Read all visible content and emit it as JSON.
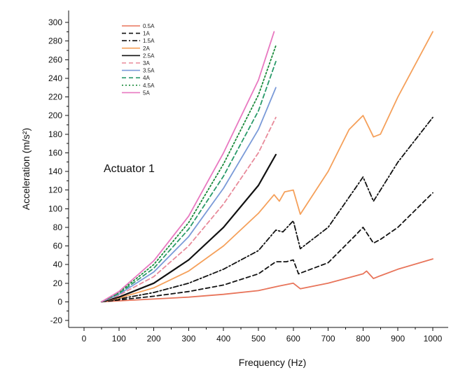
{
  "chart_data": {
    "type": "line",
    "title": "",
    "annotation": "Actuator 1",
    "xlabel": "Frequency (Hz)",
    "ylabel": "Acceleration (m/s²)",
    "xlim": [
      0,
      1000
    ],
    "ylim": [
      -20,
      300
    ],
    "xticks": [
      0,
      100,
      200,
      300,
      400,
      500,
      600,
      700,
      800,
      900,
      1000
    ],
    "yticks": [
      -20,
      0,
      20,
      40,
      60,
      80,
      100,
      120,
      140,
      160,
      180,
      200,
      220,
      240,
      260,
      280,
      300
    ],
    "grid": false,
    "legend_position": "top-left",
    "series": [
      {
        "name": "0.5A",
        "color": "#e8745a",
        "dash": "solid",
        "x": [
          50,
          100,
          200,
          300,
          400,
          500,
          560,
          600,
          620,
          700,
          800,
          810,
          830,
          850,
          900,
          1000
        ],
        "y": [
          0,
          1,
          3,
          5,
          8,
          12,
          17,
          20,
          14,
          20,
          30,
          33,
          25,
          28,
          35,
          46
        ]
      },
      {
        "name": "1A",
        "color": "#111111",
        "dash": "dashed",
        "x": [
          50,
          100,
          200,
          300,
          400,
          500,
          550,
          580,
          600,
          615,
          700,
          780,
          800,
          830,
          850,
          900,
          1000
        ],
        "y": [
          0,
          2,
          6,
          11,
          18,
          30,
          43,
          43,
          45,
          30,
          42,
          72,
          80,
          63,
          67,
          80,
          117
        ]
      },
      {
        "name": "1.5A",
        "color": "#111111",
        "dash": "dashdot",
        "x": [
          50,
          100,
          200,
          300,
          400,
          500,
          550,
          570,
          600,
          620,
          700,
          780,
          800,
          830,
          850,
          900,
          1000
        ],
        "y": [
          0,
          3,
          10,
          20,
          35,
          55,
          77,
          75,
          87,
          57,
          80,
          123,
          134,
          108,
          120,
          150,
          198
        ]
      },
      {
        "name": "2A",
        "color": "#f5a05a",
        "dash": "solid",
        "x": [
          50,
          100,
          200,
          300,
          400,
          500,
          545,
          560,
          575,
          600,
          620,
          700,
          760,
          800,
          830,
          850,
          900,
          1000
        ],
        "y": [
          0,
          4,
          15,
          33,
          60,
          95,
          115,
          108,
          118,
          120,
          94,
          140,
          185,
          200,
          177,
          180,
          220,
          290
        ]
      },
      {
        "name": "2.5A",
        "color": "#111111",
        "dash": "solid",
        "x": [
          50,
          100,
          200,
          300,
          400,
          500,
          550
        ],
        "y": [
          0,
          5,
          20,
          45,
          80,
          125,
          158
        ]
      },
      {
        "name": "3A",
        "color": "#e88a9a",
        "dash": "dashed",
        "x": [
          50,
          100,
          200,
          300,
          400,
          500,
          550
        ],
        "y": [
          0,
          7,
          27,
          60,
          105,
          160,
          198
        ]
      },
      {
        "name": "3.5A",
        "color": "#7a9ad8",
        "dash": "solid",
        "x": [
          50,
          100,
          200,
          300,
          400,
          500,
          550
        ],
        "y": [
          0,
          8,
          32,
          70,
          122,
          185,
          230
        ]
      },
      {
        "name": "4A",
        "color": "#2a9a6a",
        "dash": "dashed",
        "x": [
          50,
          100,
          200,
          300,
          400,
          500,
          550
        ],
        "y": [
          0,
          9,
          36,
          78,
          135,
          205,
          258
        ]
      },
      {
        "name": "4.5A",
        "color": "#1a8a3a",
        "dash": "dotted",
        "x": [
          50,
          100,
          200,
          300,
          400,
          500,
          550
        ],
        "y": [
          0,
          10,
          40,
          85,
          148,
          222,
          275
        ]
      },
      {
        "name": "5A",
        "color": "#e878c0",
        "dash": "solid",
        "x": [
          50,
          100,
          200,
          300,
          400,
          500,
          545
        ],
        "y": [
          0,
          11,
          44,
          92,
          160,
          238,
          290
        ]
      }
    ]
  }
}
